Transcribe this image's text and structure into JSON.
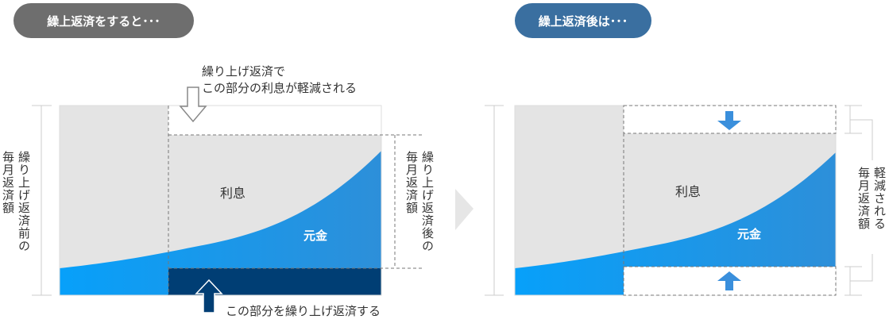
{
  "left": {
    "badge": "繰上返済をすると･･･",
    "top_note_line1": "繰り上げ返済で",
    "top_note_line2": "この部分の利息が軽減される",
    "bottom_note": "この部分を繰り上げ返済する",
    "before_label": "繰り上げ返済前の\n毎月返済額",
    "after_label": "繰り上げ返済後の\n毎月返済額",
    "interest": "利息",
    "principal": "元金"
  },
  "right": {
    "badge": "繰上返済後は･･･",
    "reduced_label": "軽減される\n毎月返済額",
    "interest": "利息",
    "principal": "元金"
  },
  "colors": {
    "left_badge": "#6e6e6e",
    "right_badge": "#3a6fa0",
    "principal": "#0a9cf5",
    "prepay": "#003e74",
    "interest": "#e4e4e4",
    "arrow": "#3a8fdc"
  }
}
